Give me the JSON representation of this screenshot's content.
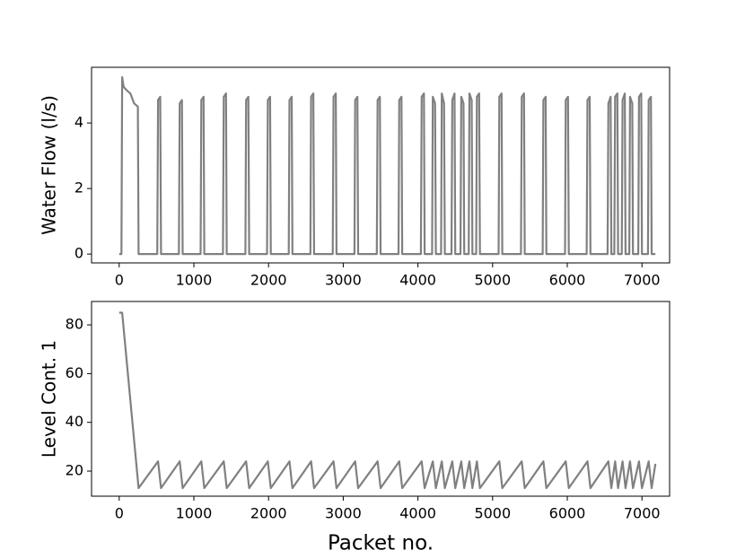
{
  "chart_data": [
    {
      "type": "line",
      "ylabel": "Water Flow (l/s)",
      "color": "#808080",
      "xlim": [
        -370,
        7370
      ],
      "ylim": [
        -0.27,
        5.7
      ],
      "xticks": [
        0,
        1000,
        2000,
        3000,
        4000,
        5000,
        6000,
        7000
      ],
      "yticks": [
        0,
        2,
        4
      ],
      "x": [
        0,
        30,
        40,
        60,
        100,
        150,
        200,
        250,
        260,
        510,
        520,
        550,
        560,
        800,
        810,
        840,
        850,
        1090,
        1100,
        1130,
        1140,
        1390,
        1400,
        1430,
        1440,
        1690,
        1700,
        1730,
        1740,
        1980,
        1990,
        2020,
        2030,
        2270,
        2280,
        2310,
        2320,
        2560,
        2570,
        2600,
        2610,
        2860,
        2870,
        2900,
        2910,
        3150,
        3160,
        3190,
        3200,
        3450,
        3460,
        3490,
        3500,
        3740,
        3750,
        3780,
        3790,
        4040,
        4050,
        4080,
        4090,
        4190,
        4200,
        4230,
        4240,
        4310,
        4320,
        4350,
        4360,
        4450,
        4460,
        4490,
        4500,
        4570,
        4580,
        4610,
        4620,
        4680,
        4690,
        4720,
        4730,
        4780,
        4790,
        4820,
        4830,
        5080,
        5090,
        5120,
        5130,
        5380,
        5390,
        5420,
        5430,
        5670,
        5680,
        5710,
        5720,
        5970,
        5980,
        6010,
        6020,
        6260,
        6270,
        6300,
        6310,
        6540,
        6550,
        6580,
        6590,
        6630,
        6640,
        6670,
        6680,
        6730,
        6740,
        6770,
        6780,
        6830,
        6840,
        6870,
        6880,
        6950,
        6960,
        6990,
        7000,
        7080,
        7090,
        7120,
        7130,
        7180
      ],
      "values": [
        0,
        0,
        5.4,
        5.1,
        5.0,
        4.9,
        4.6,
        4.5,
        0,
        0,
        4.7,
        4.8,
        0,
        0,
        4.6,
        4.7,
        0,
        0,
        4.7,
        4.8,
        0,
        0,
        4.8,
        4.9,
        0,
        0,
        4.7,
        4.8,
        0,
        0,
        4.7,
        4.8,
        0,
        0,
        4.7,
        4.8,
        0,
        0,
        4.8,
        4.9,
        0,
        0,
        4.8,
        4.9,
        0,
        0,
        4.7,
        4.8,
        0,
        0,
        4.7,
        4.8,
        0,
        0,
        4.7,
        4.8,
        0,
        0,
        4.8,
        4.9,
        0,
        0,
        4.8,
        4.6,
        0,
        0,
        4.9,
        4.6,
        0,
        0,
        4.7,
        4.9,
        0,
        0,
        4.8,
        4.6,
        0,
        0,
        4.9,
        4.7,
        0,
        0,
        4.8,
        4.9,
        0,
        0,
        4.8,
        4.9,
        0,
        0,
        4.8,
        4.9,
        0,
        0,
        4.7,
        4.8,
        0,
        0,
        4.7,
        4.8,
        0,
        0,
        4.7,
        4.8,
        0,
        0,
        4.6,
        4.8,
        0,
        0,
        4.8,
        4.9,
        0,
        0,
        4.7,
        4.9,
        0,
        0,
        4.8,
        4.6,
        0,
        0,
        4.8,
        4.9,
        0,
        0,
        4.7,
        4.8,
        0,
        0
      ]
    },
    {
      "type": "line",
      "ylabel": "Level Cont. 1",
      "xlabel": "Packet no.",
      "color": "#808080",
      "xlim": [
        -370,
        7370
      ],
      "ylim": [
        9.7,
        89.6
      ],
      "xticks": [
        0,
        1000,
        2000,
        3000,
        4000,
        5000,
        6000,
        7000
      ],
      "yticks": [
        20,
        40,
        60,
        80
      ],
      "x": [
        0,
        40,
        260,
        520,
        560,
        810,
        850,
        1100,
        1140,
        1400,
        1440,
        1700,
        1740,
        1990,
        2030,
        2280,
        2320,
        2570,
        2610,
        2870,
        2910,
        3160,
        3200,
        3460,
        3500,
        3750,
        3790,
        4050,
        4090,
        4200,
        4240,
        4320,
        4360,
        4460,
        4500,
        4580,
        4620,
        4690,
        4730,
        4790,
        4830,
        5090,
        5130,
        5390,
        5430,
        5680,
        5720,
        5980,
        6020,
        6270,
        6310,
        6550,
        6590,
        6640,
        6680,
        6740,
        6780,
        6840,
        6880,
        6960,
        7000,
        7090,
        7130,
        7180
      ],
      "values": [
        85,
        85,
        13,
        24,
        13,
        24,
        13,
        24,
        13,
        24,
        13,
        24,
        13,
        24,
        13,
        24,
        13,
        24,
        13,
        24,
        13,
        24,
        13,
        24,
        13,
        24,
        13,
        24,
        13,
        24,
        13,
        24,
        13,
        24,
        13,
        24,
        13,
        24,
        13,
        24,
        13,
        24,
        13,
        24,
        13,
        24,
        13,
        24,
        13,
        24,
        13,
        24,
        13,
        24,
        13,
        24,
        13,
        24,
        13,
        24,
        13,
        24,
        13,
        23
      ]
    }
  ]
}
